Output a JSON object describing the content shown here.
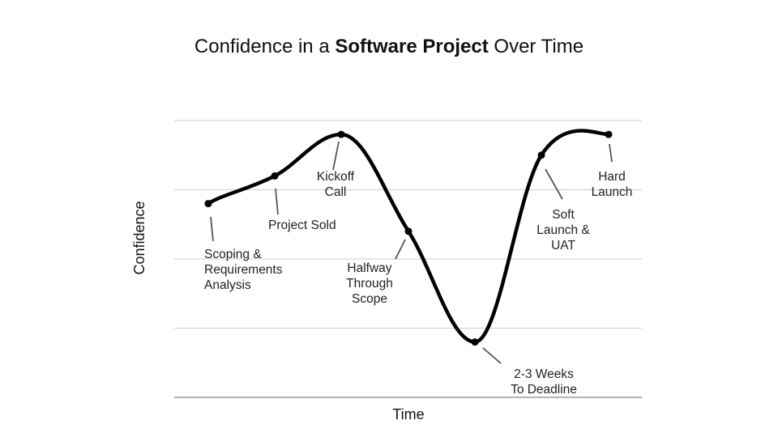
{
  "title": {
    "prefix": "Confidence in a ",
    "bold": "Software Project",
    "suffix": " Over Time"
  },
  "chart_data": {
    "type": "line",
    "title": "Confidence in a Software Project Over Time",
    "xlabel": "Time",
    "ylabel": "Confidence",
    "ylim": [
      0,
      4
    ],
    "grid": true,
    "x": [
      1,
      2,
      3,
      4,
      5,
      6,
      7
    ],
    "series": [
      {
        "values": [
          2.8,
          3.2,
          3.8,
          2.4,
          0.8,
          3.5,
          3.8
        ],
        "labels": [
          "Scoping & Requirements Analysis",
          "Project Sold",
          "Kickoff Call",
          "Halfway Through Scope",
          "2-3 Weeks To Deadline",
          "Soft Launch & UAT",
          "Hard Launch"
        ]
      }
    ],
    "annotations": [
      {
        "lines": [
          "Scoping &",
          "Requirements",
          "Analysis"
        ]
      },
      {
        "lines": [
          "Project Sold"
        ]
      },
      {
        "lines": [
          "Kickoff",
          "Call"
        ]
      },
      {
        "lines": [
          "Halfway",
          "Through",
          "Scope"
        ]
      },
      {
        "lines": [
          "2-3 Weeks",
          "To Deadline"
        ]
      },
      {
        "lines": [
          "Soft",
          "Launch &",
          "UAT"
        ]
      },
      {
        "lines": [
          "Hard",
          "Launch"
        ]
      }
    ],
    "colors": {
      "line": "#000000",
      "grid": "#cccccc",
      "axis": "#888888",
      "leader": "#555555"
    }
  }
}
